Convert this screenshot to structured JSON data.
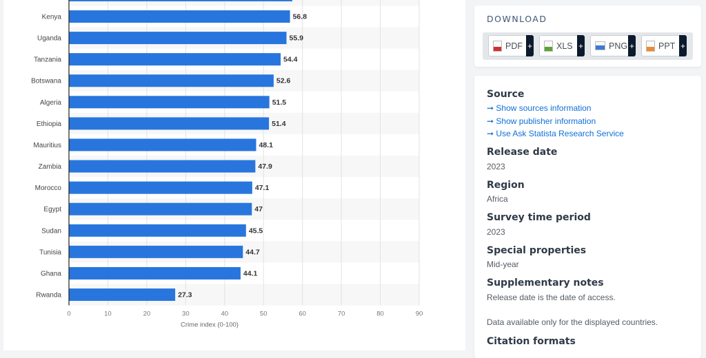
{
  "chart_data": {
    "type": "bar",
    "orientation": "horizontal",
    "categories": [
      "",
      "Kenya",
      "Uganda",
      "Tanzania",
      "Botswana",
      "Algeria",
      "Ethiopia",
      "Mauritius",
      "Zambia",
      "Morocco",
      "Egypt",
      "Sudan",
      "Tunisia",
      "Ghana",
      "Rwanda"
    ],
    "values": [
      57.4,
      56.8,
      55.9,
      54.4,
      52.6,
      51.5,
      51.4,
      48.1,
      47.9,
      47.1,
      47,
      45.5,
      44.7,
      44.1,
      27.3
    ],
    "value_labels": [
      "",
      "56.8",
      "55.9",
      "54.4",
      "52.6",
      "51.5",
      "51.4",
      "48.1",
      "47.9",
      "47.1",
      "47",
      "45.5",
      "44.7",
      "44.1",
      "27.3"
    ],
    "xlabel": "Crime index (0-100)",
    "xlim": [
      0,
      90
    ],
    "ticks": [
      "0",
      "10",
      "20",
      "30",
      "40",
      "50",
      "60",
      "70",
      "80",
      "90"
    ],
    "grid": true,
    "bar_color": "#2876dd"
  },
  "download": {
    "title": "DOWNLOAD",
    "buttons": [
      {
        "label": "PDF",
        "color": "#d32f2f"
      },
      {
        "label": "XLS",
        "color": "#5aa531"
      },
      {
        "label": "PNG",
        "color": "#3b7bd0"
      },
      {
        "label": "PPT",
        "color": "#ef8a2f"
      }
    ],
    "plus": "+"
  },
  "info": {
    "source_title": "Source",
    "links": [
      "Show sources information",
      "Show publisher information",
      "Use Ask Statista Research Service"
    ],
    "arrow": "➞",
    "release_title": "Release date",
    "release": "2023",
    "region_title": "Region",
    "region": "Africa",
    "survey_title": "Survey time period",
    "survey": "2023",
    "special_title": "Special properties",
    "special": "Mid-year",
    "notes_title": "Supplementary notes",
    "notes1": "Release date is the date of access.",
    "notes2": "Data available only for the displayed countries.",
    "citation_title": "Citation formats"
  }
}
